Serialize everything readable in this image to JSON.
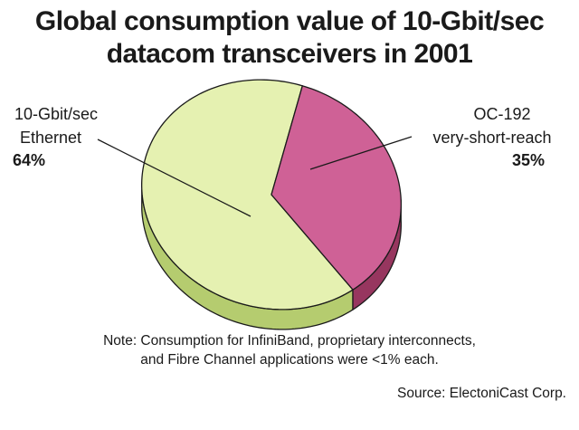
{
  "chart_data": {
    "type": "pie",
    "title_lines": [
      "Global consumption value of 10-Gbit/sec",
      "datacom transceivers in 2001"
    ],
    "slices": [
      {
        "label_lines": [
          "10-Gbit/sec",
          "Ethernet"
        ],
        "value": 64,
        "value_label": "64%",
        "color": "#e5f1b1",
        "side_color": "#b5cc6f"
      },
      {
        "label_lines": [
          "OC-192",
          "very-short-reach"
        ],
        "value": 35,
        "value_label": "35%",
        "color": "#cf6196",
        "side_color": "#97365f"
      }
    ],
    "legend": "none",
    "grid": false
  },
  "note_lines": [
    "Note: Consumption for InfiniBand, proprietary interconnects,",
    "and Fibre Channel applications were <1% each."
  ],
  "source": "Source: ElectoniCast Corp."
}
